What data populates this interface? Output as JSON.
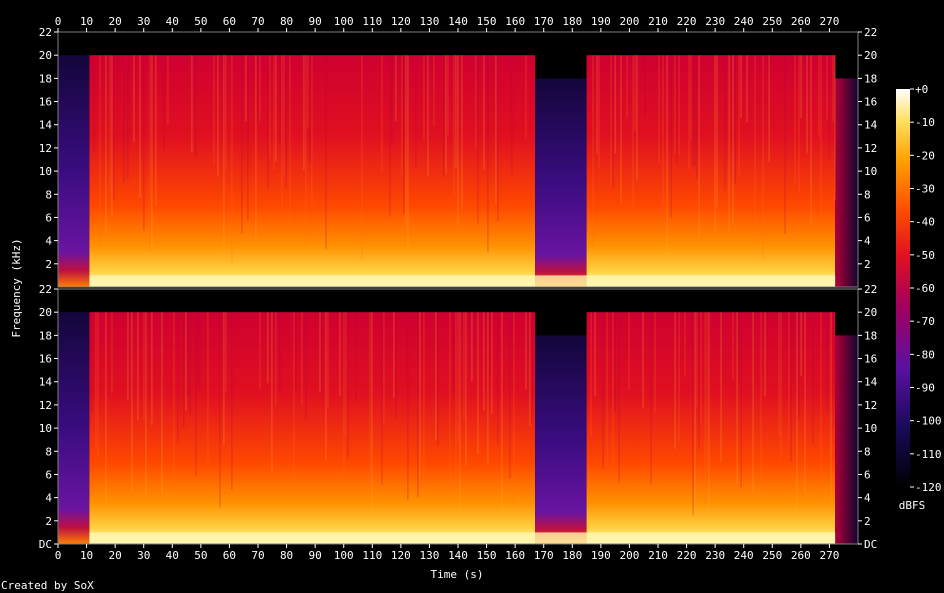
{
  "chart_data": {
    "type": "heatmap",
    "xlabel": "Time (s)",
    "ylabel": "Frequency (kHz)",
    "x_ticks": [
      "0",
      "10",
      "20",
      "30",
      "40",
      "50",
      "60",
      "70",
      "80",
      "90",
      "100",
      "110",
      "120",
      "130",
      "140",
      "150",
      "160",
      "170",
      "180",
      "190",
      "200",
      "210",
      "220",
      "230",
      "240",
      "250",
      "260",
      "270"
    ],
    "xlim": [
      0,
      280
    ],
    "channels": [
      {
        "y_ticks": [
          "22",
          "20",
          "18",
          "16",
          "14",
          "12",
          "10",
          "8",
          "6",
          "4",
          "2"
        ]
      },
      {
        "y_ticks": [
          "22",
          "20",
          "18",
          "16",
          "14",
          "12",
          "10",
          "8",
          "6",
          "4",
          "2",
          "DC"
        ]
      }
    ],
    "ylim": [
      0,
      22
    ],
    "colorbar": {
      "ticks": [
        "+0",
        "-10",
        "-20",
        "-30",
        "-40",
        "-50",
        "-60",
        "-70",
        "-80",
        "-90",
        "-100",
        "-110",
        "-120"
      ],
      "range": [
        -120,
        0
      ],
      "label": "dBFS"
    },
    "segments": [
      {
        "start": 0,
        "end": 11,
        "level": "low"
      },
      {
        "start": 11,
        "end": 167,
        "level": "high"
      },
      {
        "start": 167,
        "end": 185,
        "level": "low"
      },
      {
        "start": 185,
        "end": 272,
        "level": "high"
      },
      {
        "start": 272,
        "end": 280,
        "level": "fade"
      }
    ],
    "colors": [
      "#000000",
      "#1a0a5a",
      "#5a10a0",
      "#a00060",
      "#e01020",
      "#ff5000",
      "#ffa000",
      "#ffe060",
      "#ffffff"
    ]
  },
  "credit": "Created by SoX"
}
